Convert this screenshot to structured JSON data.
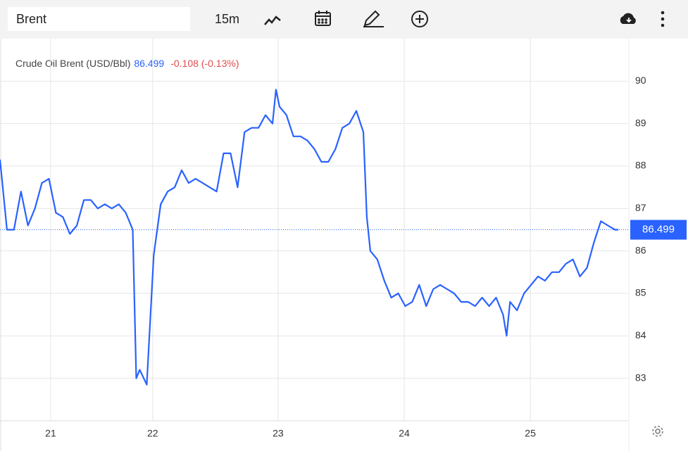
{
  "toolbar": {
    "search": "Brent",
    "interval": "15m"
  },
  "chart_data": {
    "type": "line",
    "title": "Crude Oil Brent (USD/Bbl)",
    "last": 86.499,
    "change_label": "-0.108 (-0.13%)",
    "x": [
      0,
      2,
      4,
      6,
      8,
      10,
      12,
      14,
      16,
      18,
      20,
      22,
      24,
      26,
      28,
      30,
      32,
      34,
      36,
      38,
      39,
      40,
      42,
      44,
      46,
      48,
      50,
      52,
      54,
      56,
      58,
      60,
      62,
      64,
      66,
      68,
      70,
      72,
      74,
      76,
      78,
      79,
      80,
      82,
      84,
      86,
      88,
      90,
      92,
      94,
      96,
      98,
      100,
      102,
      104,
      105,
      106,
      108,
      110,
      112,
      114,
      116,
      118,
      120,
      122,
      124,
      126,
      128,
      130,
      132,
      134,
      136,
      138,
      140,
      142,
      144,
      145,
      146,
      148,
      150,
      152,
      154,
      156,
      158,
      160,
      162,
      164,
      166,
      168,
      170,
      172,
      174,
      176,
      177
    ],
    "series": [
      {
        "name": "Crude Oil Brent (USD/Bbl)",
        "color": "#2962ff",
        "values": [
          88.15,
          86.5,
          86.5,
          87.4,
          86.6,
          87.0,
          87.6,
          87.7,
          86.9,
          86.8,
          86.4,
          86.6,
          87.2,
          87.2,
          87.0,
          87.1,
          87.0,
          87.1,
          86.9,
          86.5,
          83.0,
          83.2,
          82.85,
          85.9,
          87.1,
          87.4,
          87.5,
          87.9,
          87.6,
          87.7,
          87.6,
          87.5,
          87.4,
          88.3,
          88.3,
          87.5,
          88.8,
          88.9,
          88.9,
          89.2,
          89.0,
          89.8,
          89.4,
          89.2,
          88.7,
          88.7,
          88.6,
          88.4,
          88.1,
          88.1,
          88.4,
          88.9,
          89.0,
          89.3,
          88.8,
          86.8,
          86.0,
          85.8,
          85.3,
          84.9,
          85.0,
          84.7,
          84.8,
          85.2,
          84.7,
          85.1,
          85.2,
          85.1,
          85.0,
          84.8,
          84.8,
          84.7,
          84.9,
          84.7,
          84.9,
          84.5,
          84.0,
          84.8,
          84.6,
          85.0,
          85.2,
          85.4,
          85.3,
          85.5,
          85.5,
          85.7,
          85.8,
          85.4,
          85.6,
          86.2,
          86.7,
          86.6,
          86.5,
          86.5
        ]
      }
    ],
    "xlim": [
      0,
      180
    ],
    "xticks": [
      {
        "value": 14.5,
        "label": "21"
      },
      {
        "value": 43.7,
        "label": "22"
      },
      {
        "value": 79.6,
        "label": "23"
      },
      {
        "value": 115.7,
        "label": "24"
      },
      {
        "value": 151.8,
        "label": "25"
      }
    ],
    "ylim": [
      82,
      91
    ],
    "yticks": [
      83,
      84,
      85,
      86,
      87,
      88,
      89,
      90
    ],
    "grid": true
  }
}
